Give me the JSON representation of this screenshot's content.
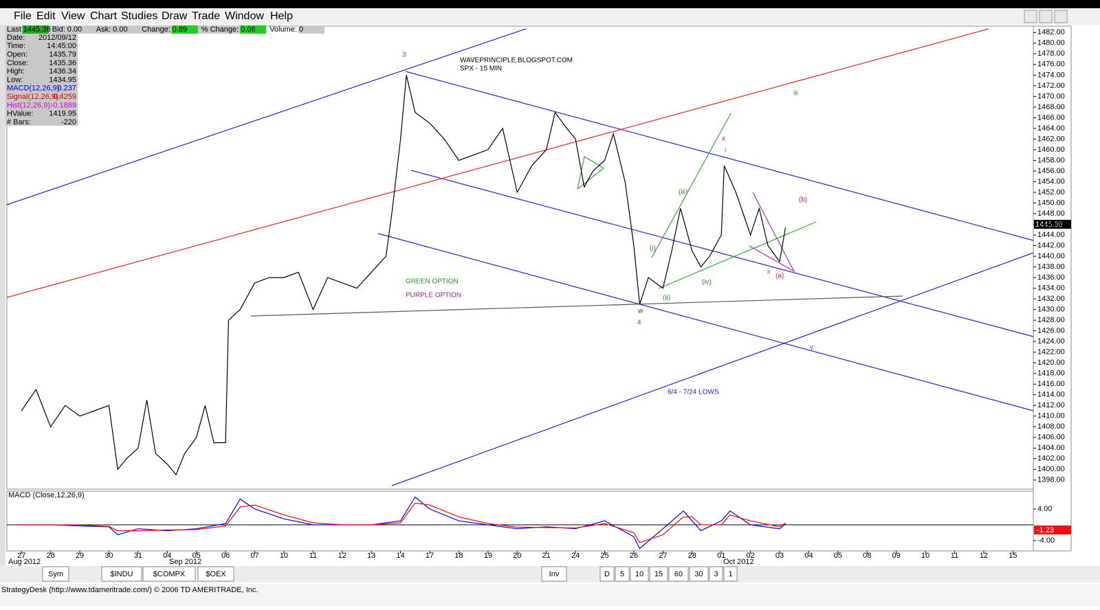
{
  "menu": [
    "File",
    "Edit",
    "View",
    "Chart",
    "Studies",
    "Draw",
    "Trade",
    "Window",
    "Help"
  ],
  "quote_strip": [
    [
      "Last",
      "1445.38"
    ],
    [
      "Bid:",
      "0.00"
    ],
    [
      "Ask:",
      "0.00"
    ],
    [
      "Change:",
      "0.89"
    ],
    [
      "% Change:",
      "0.06"
    ],
    [
      "Volume:",
      "0"
    ]
  ],
  "info_panel": [
    [
      "Date:",
      "2012/09/12"
    ],
    [
      "Time:",
      "14:45:00"
    ],
    [
      "Open:",
      "1435.79"
    ],
    [
      "Close:",
      "1435.36"
    ],
    [
      "High:",
      "1436.34"
    ],
    [
      "Low:",
      "1434.95"
    ],
    [
      "MACD(12,26,9):",
      "0.237"
    ],
    [
      "Signal(12,26,9):",
      "0.4259"
    ],
    [
      "Hist(12,26,9):",
      "-0.1889"
    ],
    [
      "HValue:",
      "1419.95"
    ],
    [
      "# Bars:",
      "-220"
    ]
  ],
  "annotations": [
    "3",
    "WAVEPRINCIPLE.BLOGSPOT.COM",
    "SPX - 15 MIN",
    "GREEN OPTION",
    "PURPLE OPTION",
    "w",
    "4",
    "x",
    "i",
    "iii",
    "(b)",
    "(iii)",
    "(i)",
    "(ii)",
    "(iv)",
    "ii",
    "(a)",
    "y",
    "6/4 - 7/24 LOWS"
  ],
  "last_price_label": "1445.38",
  "macd_badge": "-1.23",
  "month_labels": [
    "Aug 2012",
    "Sep 2012",
    "Oct 2012"
  ],
  "tabs_left": [
    "Sym",
    "$INDU",
    "$COMPX",
    "$OEX"
  ],
  "tabs_right": [
    "Inv",
    "D",
    "5",
    "10",
    "15",
    "60",
    "30",
    "3",
    "1"
  ],
  "status": "StrategyDesk (http://www.tdameritrade.com/) © 2006 TD AMERITRADE, Inc.",
  "chart_data": [
    {
      "type": "line",
      "categories": [
        "27",
        "28",
        "29",
        "30",
        "31",
        "04",
        "05",
        "06",
        "07",
        "10",
        "11",
        "12",
        "13",
        "14",
        "17",
        "18",
        "19",
        "20",
        "21",
        "24",
        "25",
        "26",
        "27",
        "28",
        "01",
        "02",
        "03",
        "04",
        "05",
        "08",
        "09",
        "10",
        "11",
        "12",
        "15"
      ],
      "xlim": [
        -0.5,
        34.7
      ],
      "ylim": [
        1396.3,
        1483.2
      ],
      "yticks": [
        {
          "value": 1398,
          "label": "1398.00"
        },
        {
          "value": 1400,
          "label": "1400.00"
        },
        {
          "value": 1402,
          "label": "1402.00"
        },
        {
          "value": 1404,
          "label": "1404.00"
        },
        {
          "value": 1406,
          "label": "1406.00"
        },
        {
          "value": 1408,
          "label": "1408.00"
        },
        {
          "value": 1410,
          "label": "1410.00"
        },
        {
          "value": 1412,
          "label": "1412.00"
        },
        {
          "value": 1414,
          "label": "1414.00"
        },
        {
          "value": 1416,
          "label": "1416.00"
        },
        {
          "value": 1418,
          "label": "1418.00"
        },
        {
          "value": 1420,
          "label": "1420.00"
        },
        {
          "value": 1422,
          "label": "1422.00"
        },
        {
          "value": 1424,
          "label": "1424.00"
        },
        {
          "value": 1426,
          "label": "1426.00"
        },
        {
          "value": 1428,
          "label": "1428.00"
        },
        {
          "value": 1430,
          "label": "1430.00"
        },
        {
          "value": 1432,
          "label": "1432.00"
        },
        {
          "value": 1434,
          "label": "1434.00"
        },
        {
          "value": 1436,
          "label": "1436.00"
        },
        {
          "value": 1438,
          "label": "1438.00"
        },
        {
          "value": 1440,
          "label": "1440.00"
        },
        {
          "value": 1442,
          "label": "1442.00"
        },
        {
          "value": 1444,
          "label": "1444.00"
        },
        {
          "value": 1446,
          "label": "1446.00"
        },
        {
          "value": 1448,
          "label": "1448.00"
        },
        {
          "value": 1450,
          "label": "1450.00"
        },
        {
          "value": 1452,
          "label": "1452.00"
        },
        {
          "value": 1454,
          "label": "1454.00"
        },
        {
          "value": 1456,
          "label": "1456.00"
        },
        {
          "value": 1458,
          "label": "1458.00"
        },
        {
          "value": 1460,
          "label": "1460.00"
        },
        {
          "value": 1462,
          "label": "1462.00"
        },
        {
          "value": 1464,
          "label": "1464.00"
        },
        {
          "value": 1466,
          "label": "1466.00"
        },
        {
          "value": 1468,
          "label": "1468.00"
        },
        {
          "value": 1470,
          "label": "1470.00"
        },
        {
          "value": 1472,
          "label": "1472.00"
        },
        {
          "value": 1474,
          "label": "1474.00"
        },
        {
          "value": 1476,
          "label": "1476.00"
        },
        {
          "value": 1478,
          "label": "1478.00"
        },
        {
          "value": 1480,
          "label": "1480.00"
        },
        {
          "value": 1482,
          "label": "1482.00"
        }
      ],
      "series": [
        {
          "color": "#000000",
          "x": [
            0,
            0.5,
            1,
            1.5,
            2,
            2.5,
            3,
            3.3,
            3.6,
            4,
            4.3,
            4.6,
            5,
            5.3,
            5.6,
            6,
            6.3,
            6.6,
            7,
            7.1,
            7.5,
            8,
            8.5,
            9,
            9.5,
            10,
            10.5,
            11,
            11.5,
            12,
            12.5,
            12.7,
            13,
            13.2,
            13.5,
            14,
            14.5,
            15,
            15.5,
            16,
            16.5,
            17,
            17.5,
            18,
            18.3,
            18.7,
            19,
            19.3,
            19.6,
            20,
            20.3,
            20.7,
            21,
            21.2,
            21.5,
            22,
            22.3,
            22.6,
            23,
            23.3,
            23.6,
            24,
            24.1,
            24.5,
            25,
            25.3,
            25.6,
            26,
            26.2
          ],
          "values": [
            1411,
            1415,
            1408,
            1412,
            1410,
            1411,
            1412,
            1400,
            1402,
            1404,
            1413,
            1403,
            1401,
            1399,
            1403,
            1406,
            1412,
            1405,
            1405,
            1428,
            1430,
            1435,
            1436,
            1436,
            1437,
            1430,
            1436,
            1435,
            1434,
            1437,
            1440,
            1448,
            1462,
            1474,
            1467,
            1465,
            1462,
            1458,
            1459,
            1460,
            1464,
            1452,
            1457,
            1460,
            1467,
            1464,
            1462,
            1453,
            1456,
            1458,
            1463,
            1454,
            1442,
            1431,
            1436,
            1434,
            1441,
            1449,
            1441,
            1438,
            1440,
            1444,
            1457,
            1452,
            1444,
            1449,
            1442,
            1439,
            1445.38
          ]
        }
      ]
    },
    {
      "type": "line",
      "title": "MACD (Close,12,26,9)",
      "xlim": [
        -0.5,
        34.7
      ],
      "ylim": [
        -6.6,
        8.5
      ],
      "yticks": [
        {
          "value": 4,
          "label": "4.00"
        },
        {
          "value": -4,
          "label": "-4.00"
        }
      ],
      "series": [
        {
          "color": "#0000ff",
          "x": [
            0,
            1,
            2,
            3,
            3.3,
            4,
            5,
            6,
            7,
            7.5,
            8,
            9,
            10,
            11,
            12,
            13,
            13.5,
            14,
            15,
            16,
            17,
            18,
            19,
            20,
            21,
            21.2,
            22,
            22.7,
            23,
            23.3,
            24,
            24.3,
            25,
            26,
            26.2
          ],
          "values": [
            0,
            0,
            -0.3,
            -0.5,
            -2.5,
            -1,
            -1.5,
            -1,
            0.3,
            6.5,
            4,
            1.5,
            0,
            0,
            0,
            1,
            7,
            4,
            1,
            0,
            -1,
            -0.5,
            -1,
            1,
            -3,
            -6,
            -1,
            3.5,
            1,
            -1.5,
            1,
            3.5,
            0,
            -1,
            0.237
          ]
        },
        {
          "color": "#ff0000",
          "x": [
            0,
            1,
            2,
            3,
            3.3,
            4,
            5,
            6,
            7,
            7.5,
            8,
            9,
            10,
            11,
            12,
            13,
            13.5,
            14,
            15,
            16,
            17,
            18,
            19,
            20,
            21,
            21.2,
            22,
            22.7,
            23,
            23.3,
            24,
            24.3,
            25,
            26,
            26.2
          ],
          "values": [
            0,
            0,
            -0.1,
            -0.4,
            -1.5,
            -1.5,
            -1.3,
            -1.2,
            -0.3,
            4.5,
            5,
            2.5,
            0.5,
            0,
            0,
            0.5,
            5.5,
            5,
            2,
            0.3,
            -0.6,
            -0.7,
            -0.8,
            0.3,
            -2,
            -4.5,
            -2.5,
            2,
            2,
            0,
            0,
            2.5,
            1,
            -0.5,
            0.4259
          ]
        }
      ]
    }
  ]
}
